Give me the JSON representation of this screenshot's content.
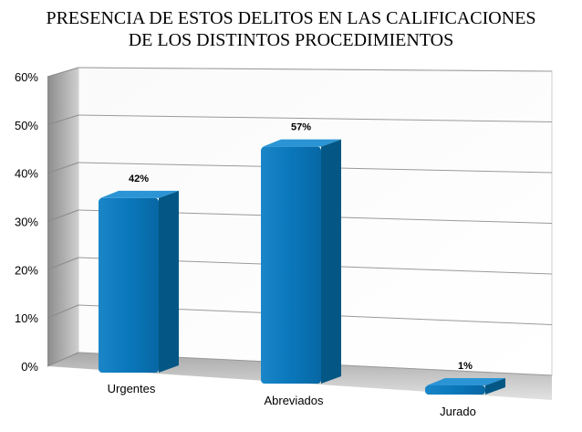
{
  "chart_data": {
    "type": "bar",
    "title_lines": [
      "PRESENCIA DE ESTOS DELITOS EN LAS CALIFICACIONES",
      "DE LOS DISTINTOS PROCEDIMIENTOS"
    ],
    "categories": [
      "Urgentes",
      "Abreviados",
      "Jurado"
    ],
    "values": [
      42,
      57,
      1
    ],
    "data_labels": [
      "42%",
      "57%",
      "1%"
    ],
    "y_ticks": [
      "0%",
      "10%",
      "20%",
      "30%",
      "40%",
      "50%",
      "60%"
    ],
    "ylim": [
      0,
      60
    ],
    "grid": true,
    "bar_color": "#0a77bb",
    "bar_side_color": "#045784",
    "bar_top_color": "#2b94d4"
  }
}
